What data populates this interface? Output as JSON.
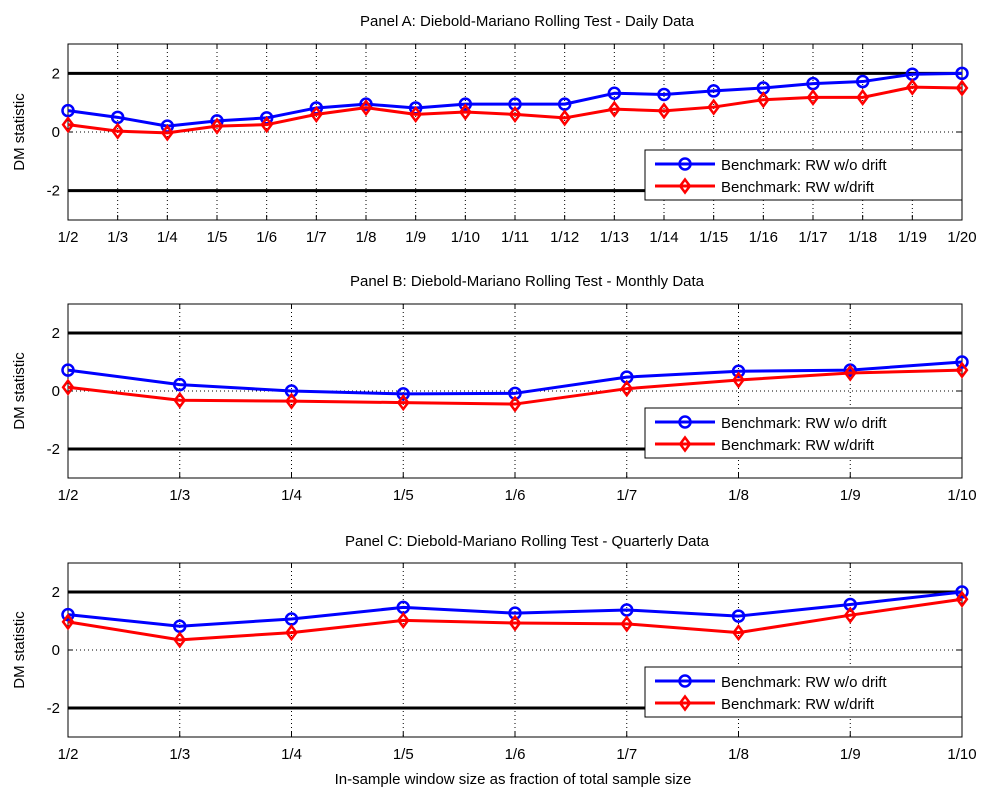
{
  "figure": {
    "xlabel": "In-sample window size as fraction of total sample size"
  },
  "chart_data": [
    {
      "type": "line",
      "title": "Panel A: Diebold-Mariano Rolling Test - Daily Data",
      "ylabel": "DM statistic",
      "xlabel": "",
      "categories": [
        "1/2",
        "1/3",
        "1/4",
        "1/5",
        "1/6",
        "1/7",
        "1/8",
        "1/9",
        "1/10",
        "1/11",
        "1/12",
        "1/13",
        "1/14",
        "1/15",
        "1/16",
        "1/17",
        "1/18",
        "1/19",
        "1/20"
      ],
      "yticks": [
        -2,
        0,
        2
      ],
      "ylim": [
        -3,
        3
      ],
      "reference_lines": [
        -2,
        2
      ],
      "grid": true,
      "legend_position": "bottom-right",
      "series": [
        {
          "name": "Benchmark: RW w/o drift",
          "color": "#0000ff",
          "marker": "circle",
          "values": [
            0.73,
            0.5,
            0.2,
            0.38,
            0.48,
            0.82,
            0.95,
            0.82,
            0.95,
            0.95,
            0.95,
            1.32,
            1.28,
            1.4,
            1.5,
            1.65,
            1.72,
            1.97,
            2.0
          ]
        },
        {
          "name": "Benchmark: RW w/drift",
          "color": "#ff0000",
          "marker": "diamond",
          "values": [
            0.25,
            0.03,
            -0.03,
            0.2,
            0.25,
            0.6,
            0.83,
            0.6,
            0.68,
            0.6,
            0.48,
            0.78,
            0.72,
            0.85,
            1.1,
            1.18,
            1.18,
            1.53,
            1.5
          ]
        }
      ]
    },
    {
      "type": "line",
      "title": "Panel B: Diebold-Mariano Rolling Test - Monthly Data",
      "ylabel": "DM statistic",
      "xlabel": "",
      "categories": [
        "1/2",
        "1/3",
        "1/4",
        "1/5",
        "1/6",
        "1/7",
        "1/8",
        "1/9",
        "1/10"
      ],
      "yticks": [
        -2,
        0,
        2
      ],
      "ylim": [
        -3,
        3
      ],
      "reference_lines": [
        -2,
        2
      ],
      "grid": true,
      "legend_position": "bottom-right",
      "series": [
        {
          "name": "Benchmark: RW w/o drift",
          "color": "#0000ff",
          "marker": "circle",
          "values": [
            0.72,
            0.22,
            0.0,
            -0.1,
            -0.08,
            0.48,
            0.68,
            0.72,
            1.0
          ]
        },
        {
          "name": "Benchmark: RW w/drift",
          "color": "#ff0000",
          "marker": "diamond",
          "values": [
            0.13,
            -0.32,
            -0.35,
            -0.4,
            -0.45,
            0.08,
            0.38,
            0.62,
            0.72
          ]
        }
      ]
    },
    {
      "type": "line",
      "title": "Panel C: Diebold-Mariano Rolling Test - Quarterly Data",
      "ylabel": "DM statistic",
      "xlabel": "",
      "categories": [
        "1/2",
        "1/3",
        "1/4",
        "1/5",
        "1/6",
        "1/7",
        "1/8",
        "1/9",
        "1/10"
      ],
      "yticks": [
        -2,
        0,
        2
      ],
      "ylim": [
        -3,
        3
      ],
      "reference_lines": [
        -2,
        2
      ],
      "grid": true,
      "legend_position": "bottom-right",
      "series": [
        {
          "name": "Benchmark: RW w/o drift",
          "color": "#0000ff",
          "marker": "circle",
          "values": [
            1.22,
            0.82,
            1.07,
            1.47,
            1.27,
            1.38,
            1.17,
            1.57,
            2.0
          ]
        },
        {
          "name": "Benchmark: RW w/drift",
          "color": "#ff0000",
          "marker": "diamond",
          "values": [
            0.97,
            0.35,
            0.6,
            1.02,
            0.93,
            0.9,
            0.6,
            1.2,
            1.75
          ]
        }
      ]
    }
  ]
}
